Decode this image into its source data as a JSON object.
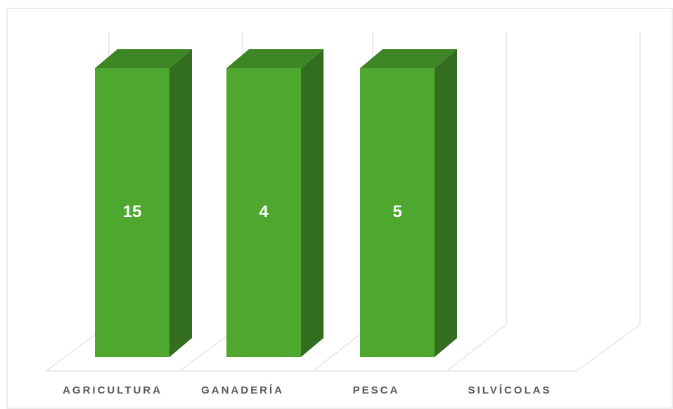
{
  "chart_data": {
    "type": "bar",
    "percent_stacked": true,
    "categories": [
      "AGRICULTURA",
      "GANADERÍA",
      "PESCA",
      "SILVÍCOLAS"
    ],
    "values": [
      15,
      4,
      5,
      null
    ],
    "color": "#4ea72e"
  }
}
